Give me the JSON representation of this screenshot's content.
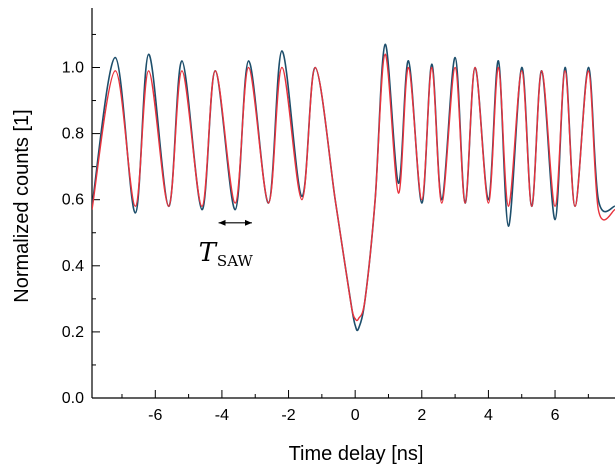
{
  "chart_data": {
    "type": "line",
    "xlabel": "Time delay [ns]",
    "ylabel": "Normalized counts [1]",
    "xlim": [
      -7.9,
      7.8
    ],
    "ylim": [
      0.0,
      1.18
    ],
    "x_ticks": [
      -6,
      -4,
      -2,
      0,
      2,
      4,
      6
    ],
    "x_tick_labels": [
      "-6",
      "-4",
      "-2",
      "0",
      "2",
      "4",
      "6"
    ],
    "y_ticks": [
      0.0,
      0.2,
      0.4,
      0.6,
      0.8,
      1.0
    ],
    "y_tick_labels": [
      "0.0",
      "0.2",
      "0.4",
      "0.6",
      "0.8",
      "1.0"
    ],
    "grid": false,
    "legend": "none",
    "series": [
      {
        "color": "#1d4e6b",
        "style": "measured (noisy)",
        "x": [
          -7.9,
          -7.2,
          -6.6,
          -6.2,
          -5.6,
          -5.2,
          -4.6,
          -4.2,
          -3.6,
          -3.2,
          -2.6,
          -2.2,
          -1.6,
          -1.2,
          -0.6,
          -0.3,
          -0.1,
          0.0,
          0.1,
          0.3,
          0.6,
          0.9,
          1.3,
          1.6,
          2.0,
          2.3,
          2.6,
          3.0,
          3.3,
          3.6,
          4.0,
          4.3,
          4.6,
          5.0,
          5.3,
          5.6,
          6.0,
          6.3,
          6.6,
          7.0,
          7.3,
          7.8
        ],
        "y": [
          0.58,
          1.03,
          0.56,
          1.04,
          0.58,
          1.02,
          0.57,
          0.99,
          0.57,
          1.02,
          0.59,
          1.05,
          0.61,
          1.0,
          0.6,
          0.4,
          0.27,
          0.22,
          0.21,
          0.3,
          0.6,
          1.07,
          0.65,
          1.02,
          0.59,
          1.01,
          0.6,
          1.03,
          0.59,
          1.0,
          0.6,
          1.02,
          0.52,
          1.0,
          0.58,
          0.99,
          0.54,
          1.0,
          0.58,
          1.0,
          0.6,
          0.58
        ]
      },
      {
        "color": "#e8323c",
        "style": "fit",
        "x": [
          -7.9,
          -7.2,
          -6.6,
          -6.2,
          -5.6,
          -5.2,
          -4.6,
          -4.2,
          -3.6,
          -3.2,
          -2.6,
          -2.2,
          -1.6,
          -1.2,
          -0.6,
          -0.3,
          -0.1,
          0.0,
          0.1,
          0.3,
          0.6,
          0.9,
          1.3,
          1.6,
          2.0,
          2.3,
          2.6,
          3.0,
          3.3,
          3.6,
          4.0,
          4.3,
          4.6,
          5.0,
          5.3,
          5.6,
          6.0,
          6.3,
          6.6,
          7.0,
          7.3,
          7.8
        ],
        "y": [
          0.57,
          0.99,
          0.58,
          0.99,
          0.58,
          0.99,
          0.58,
          0.99,
          0.59,
          1.0,
          0.59,
          1.0,
          0.6,
          1.0,
          0.6,
          0.4,
          0.27,
          0.24,
          0.24,
          0.3,
          0.6,
          1.04,
          0.62,
          1.0,
          0.6,
          1.0,
          0.59,
          1.0,
          0.59,
          1.0,
          0.59,
          1.0,
          0.58,
          0.99,
          0.58,
          0.99,
          0.58,
          0.99,
          0.58,
          0.99,
          0.57,
          0.57
        ]
      }
    ],
    "annotations": [
      {
        "main": "T",
        "sub": "SAW",
        "arrow_from_x": -4.1,
        "arrow_to_x": -3.1,
        "arrow_y": 0.53
      }
    ]
  }
}
